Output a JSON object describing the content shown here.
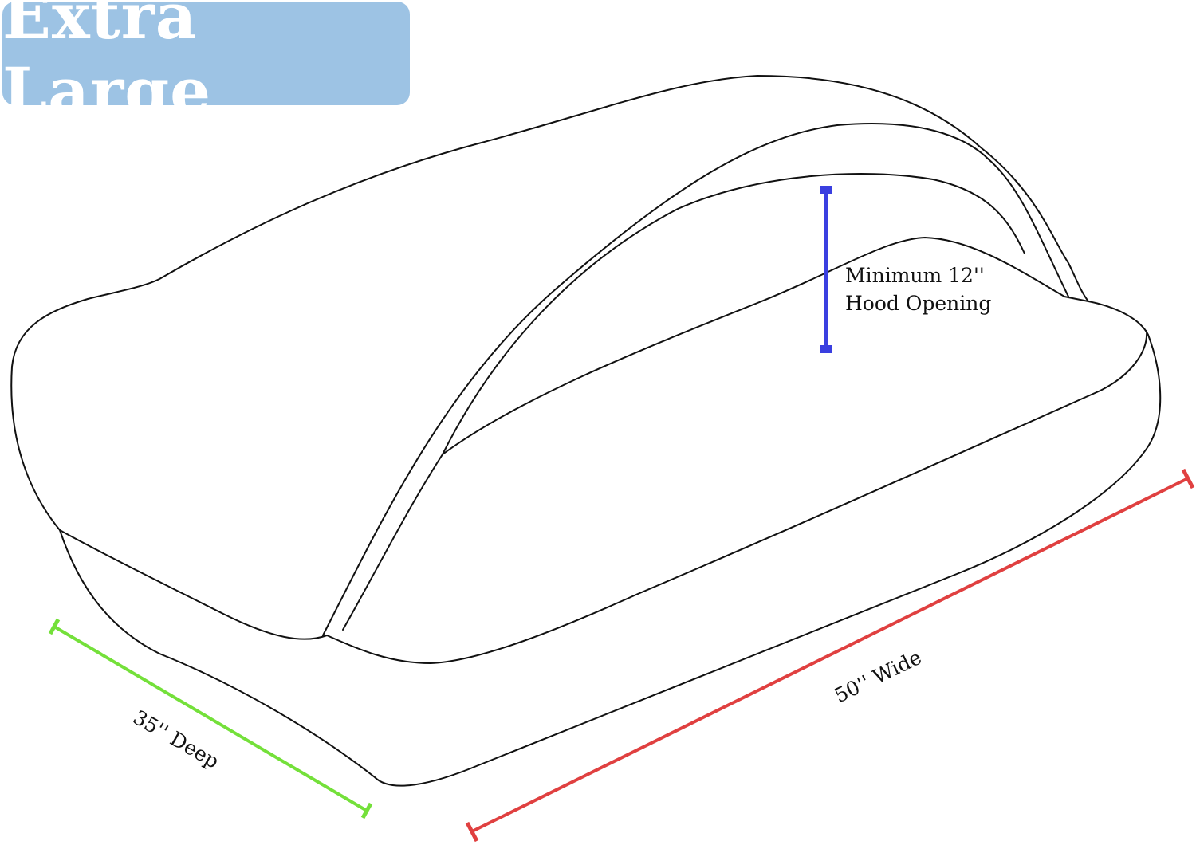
{
  "title": "Extra Large",
  "dimensions": {
    "hood": {
      "line1": "Minimum 12''",
      "line2": "Hood Opening",
      "color": "#3a3fe0"
    },
    "width": {
      "label": "50'' Wide",
      "color": "#e04040"
    },
    "depth": {
      "label": "35'' Deep",
      "color": "#74e03a"
    }
  },
  "badge_color": "#9dc3e4"
}
